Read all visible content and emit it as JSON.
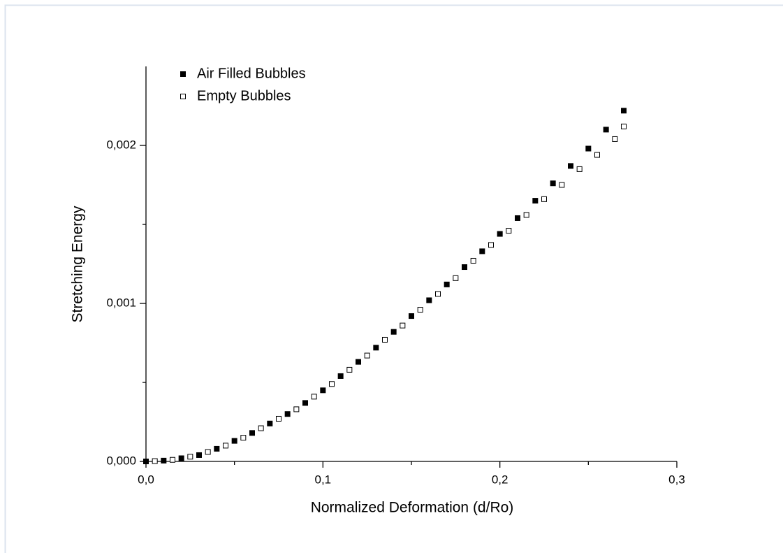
{
  "chart_data": {
    "type": "scatter",
    "x_label": "Normalized Deformation (d/Ro)",
    "y_label": "Stretching Energy",
    "xlim": [
      0,
      0.3
    ],
    "ylim": [
      0,
      0.0025
    ],
    "xticks": [
      {
        "value": 0,
        "label": "0,0"
      },
      {
        "value": 0.1,
        "label": "0,1"
      },
      {
        "value": 0.2,
        "label": "0,2"
      },
      {
        "value": 0.3,
        "label": "0,3"
      }
    ],
    "yticks": [
      {
        "value": 0,
        "label": "0,000"
      },
      {
        "value": 0.001,
        "label": "0,001"
      },
      {
        "value": 0.002,
        "label": "0,002"
      }
    ],
    "xminor_ticks": [
      0.05,
      0.15,
      0.25
    ],
    "yminor_ticks": [
      0.0005,
      0.0015
    ],
    "legend": "top-left",
    "series": [
      {
        "name": "Air Filled Bubbles",
        "color": "#000000",
        "filled": true,
        "x": [
          0,
          0.01,
          0.02,
          0.03,
          0.04,
          0.05,
          0.06,
          0.07,
          0.08,
          0.09,
          0.1,
          0.11,
          0.12,
          0.13,
          0.14,
          0.15,
          0.16,
          0.17,
          0.18,
          0.19,
          0.2,
          0.21,
          0.22,
          0.23,
          0.24,
          0.25,
          0.26,
          0.27
        ],
        "values": [
          0,
          5e-06,
          2e-05,
          4e-05,
          8e-05,
          0.00013,
          0.00018,
          0.00024,
          0.0003,
          0.00037,
          0.00045,
          0.00054,
          0.00063,
          0.00072,
          0.00082,
          0.00092,
          0.00102,
          0.00112,
          0.00123,
          0.00133,
          0.00144,
          0.00154,
          0.00165,
          0.00176,
          0.00187,
          0.00198,
          0.0021,
          0.00222
        ]
      },
      {
        "name": "Empty Bubbles",
        "color": "#000000",
        "filled": false,
        "x": [
          0.005,
          0.015,
          0.025,
          0.035,
          0.045,
          0.055,
          0.065,
          0.075,
          0.085,
          0.095,
          0.105,
          0.115,
          0.125,
          0.135,
          0.145,
          0.155,
          0.165,
          0.175,
          0.185,
          0.195,
          0.205,
          0.215,
          0.225,
          0.235,
          0.245,
          0.255,
          0.265,
          0.27
        ],
        "values": [
          2e-06,
          1e-05,
          3e-05,
          6e-05,
          0.0001,
          0.00015,
          0.00021,
          0.00027,
          0.00033,
          0.00041,
          0.00049,
          0.00058,
          0.00067,
          0.00077,
          0.00086,
          0.00096,
          0.00106,
          0.00116,
          0.00127,
          0.00137,
          0.00146,
          0.00156,
          0.00166,
          0.00175,
          0.00185,
          0.00194,
          0.00204,
          0.00212
        ]
      }
    ]
  }
}
